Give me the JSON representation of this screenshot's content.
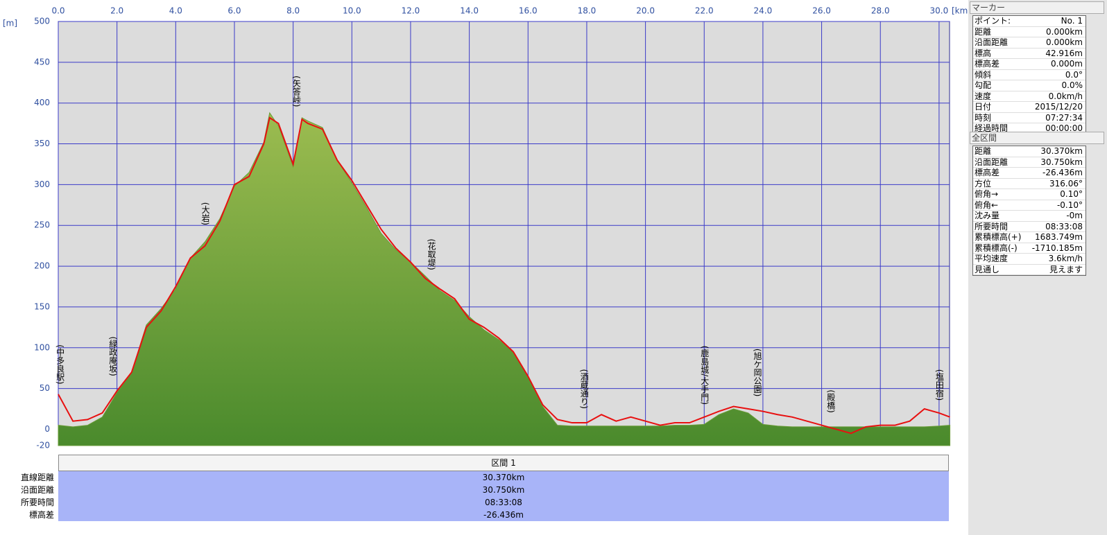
{
  "chart_data": {
    "type": "area",
    "x_unit": "[km]",
    "y_unit": "[m]",
    "xlim": [
      0,
      30.37
    ],
    "ylim": [
      -20,
      500
    ],
    "xticks": [
      {
        "value": 0,
        "label": "0.0"
      },
      {
        "value": 2,
        "label": "2.0"
      },
      {
        "value": 4,
        "label": "4.0"
      },
      {
        "value": 6,
        "label": "6.0"
      },
      {
        "value": 8,
        "label": "8.0"
      },
      {
        "value": 10,
        "label": "10.0"
      },
      {
        "value": 12,
        "label": "12.0"
      },
      {
        "value": 14,
        "label": "14.0"
      },
      {
        "value": 16,
        "label": "16.0"
      },
      {
        "value": 18,
        "label": "18.0"
      },
      {
        "value": 20,
        "label": "20.0"
      },
      {
        "value": 22,
        "label": "22.0"
      },
      {
        "value": 24,
        "label": "24.0"
      },
      {
        "value": 26,
        "label": "26.0"
      },
      {
        "value": 28,
        "label": "28.0"
      },
      {
        "value": 30,
        "label": "30.0"
      }
    ],
    "yticks": [
      -20,
      0,
      50,
      100,
      150,
      200,
      250,
      300,
      350,
      400,
      450,
      500
    ],
    "grid": true,
    "x": [
      0,
      0.5,
      1,
      1.5,
      2,
      2.5,
      3,
      3.5,
      4,
      4.5,
      5,
      5.5,
      6,
      6.5,
      7,
      7.2,
      7.5,
      8,
      8.3,
      8.5,
      9,
      9.5,
      10,
      10.5,
      11,
      11.5,
      12,
      12.5,
      13,
      13.5,
      14,
      14.5,
      15,
      15.5,
      16,
      16.5,
      17,
      17.5,
      18,
      18.5,
      19,
      19.5,
      20,
      20.5,
      21,
      21.5,
      22,
      22.5,
      23,
      23.5,
      24,
      24.5,
      25,
      25.5,
      26,
      26.5,
      27,
      27.5,
      28,
      28.5,
      29,
      29.5,
      30,
      30.37
    ],
    "series": [
      {
        "color": "#6a9c38",
        "values": [
          5,
          3,
          5,
          15,
          45,
          70,
          128,
          148,
          172,
          210,
          230,
          258,
          298,
          315,
          352,
          388,
          372,
          322,
          382,
          378,
          370,
          330,
          302,
          272,
          240,
          220,
          205,
          188,
          170,
          158,
          138,
          122,
          110,
          95,
          65,
          28,
          5,
          4,
          4,
          4,
          4,
          4,
          4,
          4,
          5,
          5,
          6,
          18,
          25,
          20,
          6,
          4,
          3,
          3,
          3,
          3,
          3,
          3,
          3,
          3,
          3,
          3,
          4,
          5
        ]
      },
      {
        "color": "#e81010",
        "values": [
          43,
          10,
          12,
          20,
          47,
          70,
          125,
          145,
          175,
          210,
          225,
          255,
          300,
          310,
          350,
          382,
          375,
          325,
          380,
          375,
          368,
          330,
          305,
          275,
          245,
          222,
          205,
          185,
          172,
          160,
          135,
          125,
          112,
          95,
          65,
          30,
          12,
          8,
          8,
          18,
          10,
          15,
          10,
          5,
          8,
          8,
          15,
          22,
          28,
          25,
          22,
          18,
          15,
          10,
          5,
          0,
          -5,
          3,
          5,
          5,
          10,
          25,
          20,
          15
        ]
      }
    ],
    "annotations": [
      {
        "x": 0.05,
        "y": 50,
        "label": "(中多良駅)"
      },
      {
        "x": 1.85,
        "y": 60,
        "label": "(緑政庵坂)"
      },
      {
        "x": 5.0,
        "y": 245,
        "label": "(大岩)"
      },
      {
        "x": 8.1,
        "y": 390,
        "label": "(矢答峠)"
      },
      {
        "x": 12.7,
        "y": 190,
        "label": "(花取堤)"
      },
      {
        "x": 17.9,
        "y": 20,
        "label": "(酒蔵通り)"
      },
      {
        "x": 22.0,
        "y": 25,
        "label": "(鹿島城/大手門)"
      },
      {
        "x": 23.8,
        "y": 35,
        "label": "(旭ケ岡公園)"
      },
      {
        "x": 26.3,
        "y": 15,
        "label": "(殿橋)"
      },
      {
        "x": 30.0,
        "y": 30,
        "label": "(塩田宿)"
      }
    ]
  },
  "section": {
    "title": "区間 1",
    "rows": [
      [
        "直線距離",
        "30.370km"
      ],
      [
        "沿面距離",
        "30.750km"
      ],
      [
        "所要時間",
        "08:33:08"
      ],
      [
        "標高差",
        "-26.436m"
      ]
    ]
  },
  "marker": {
    "title": "マーカー",
    "rows": [
      [
        "ポイント:",
        "No. 1"
      ],
      [
        "距離",
        "0.000km"
      ],
      [
        "沿面距離",
        "0.000km"
      ],
      [
        "標高",
        "42.916m"
      ],
      [
        "標高差",
        "0.000m"
      ],
      [
        "傾斜",
        "0.0°"
      ],
      [
        "勾配",
        "0.0%"
      ],
      [
        "速度",
        "0.0km/h"
      ],
      [
        "日付",
        "2015/12/20"
      ],
      [
        "時刻",
        "07:27:34"
      ],
      [
        "経過時間",
        "00:00:00"
      ]
    ]
  },
  "total": {
    "title": "全区間",
    "rows": [
      [
        "距離",
        "30.370km"
      ],
      [
        "沿面距離",
        "30.750km"
      ],
      [
        "標高差",
        "-26.436m"
      ],
      [
        "方位",
        "316.06°"
      ],
      [
        "俯角→",
        "0.10°"
      ],
      [
        "俯角←",
        "-0.10°"
      ],
      [
        "沈み量",
        "-0m"
      ],
      [
        "所要時間",
        "08:33:08"
      ],
      [
        "累積標高(+)",
        "1683.749m"
      ],
      [
        "累積標高(-)",
        "-1710.185m"
      ],
      [
        "平均速度",
        "3.6km/h"
      ],
      [
        "見通し",
        "見えます"
      ]
    ]
  }
}
